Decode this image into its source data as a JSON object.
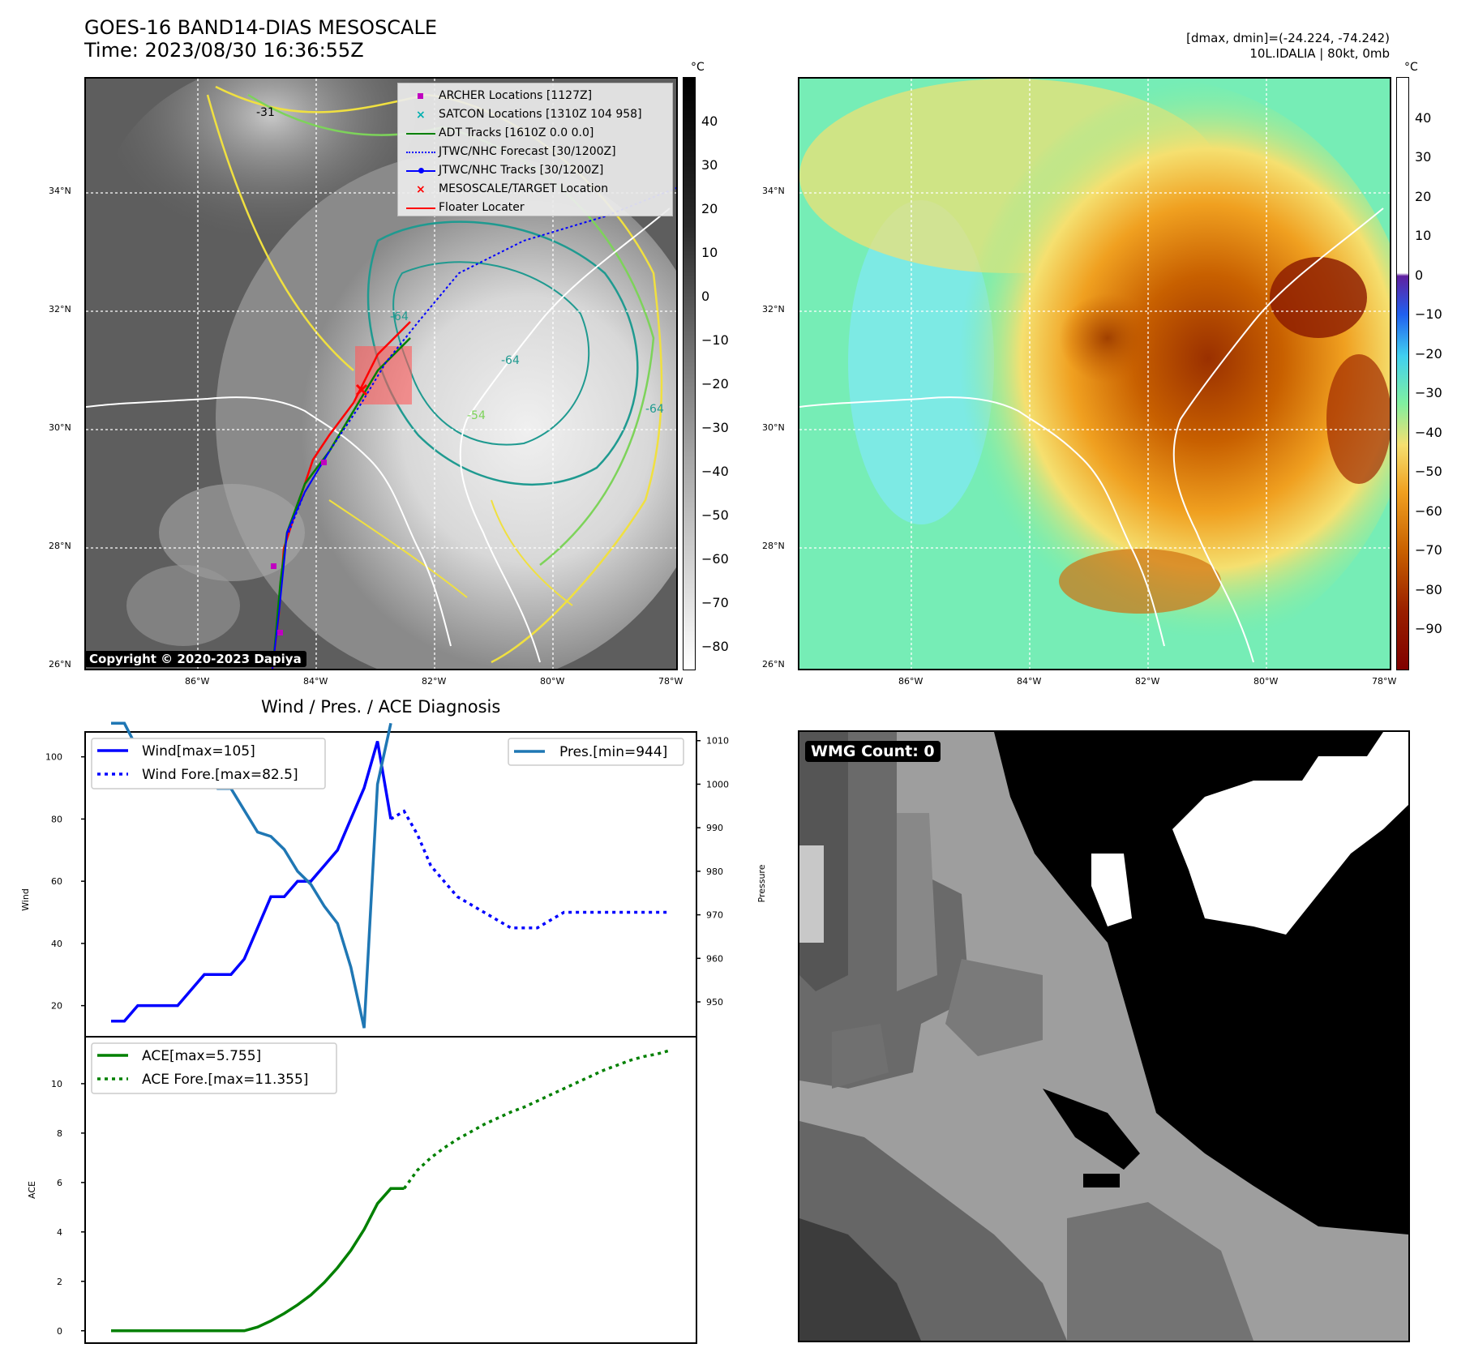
{
  "header": {
    "title": "GOES-16 BAND14-DIAS MESOSCALE",
    "time": "Time: 2023/08/30 16:36:55Z",
    "dmax_dmin": "[dmax, dmin]=(-24.224, -74.242)",
    "storm_info": "10L.IDALIA | 80kt, 0mb",
    "copyright": "Copyright © 2020-2023 Dapiya",
    "wmg_count": "WMG Count: 0",
    "diagnosis_title": "Wind / Pres. / ACE Diagnosis"
  },
  "map": {
    "lat_labels": [
      "34°N",
      "32°N",
      "30°N",
      "28°N",
      "26°N"
    ],
    "lon_labels": [
      "86°W",
      "84°W",
      "82°W",
      "80°W",
      "78°W"
    ],
    "contour_labels": [
      "-31",
      "-64",
      "-64",
      "-54",
      "-64"
    ],
    "legend": [
      {
        "label": "ARCHER Locations [1127Z]",
        "color": "#c000c0",
        "symbol": "square"
      },
      {
        "label": "SATCON Locations [1310Z 104 958]",
        "color": "#00b0b0",
        "symbol": "x"
      },
      {
        "label": "ADT Tracks [1610Z 0.0 0.0]",
        "color": "#008000",
        "symbol": "line"
      },
      {
        "label": "JTWC/NHC Forecast [30/1200Z]",
        "color": "#0000ff",
        "symbol": "dotted"
      },
      {
        "label": "JTWC/NHC Tracks [30/1200Z]",
        "color": "#0000ff",
        "symbol": "line-dot"
      },
      {
        "label": "MESOSCALE/TARGET Location",
        "color": "#ff0000",
        "symbol": "x"
      },
      {
        "label": "Floater Locater",
        "color": "#ff0000",
        "symbol": "line"
      }
    ],
    "colorbar_unit": "°C",
    "gray_colorbar_ticks": [
      "40",
      "30",
      "20",
      "10",
      "0",
      "−10",
      "−20",
      "−30",
      "−40",
      "−50",
      "−60",
      "−70",
      "−80"
    ],
    "color_colorbar_ticks": [
      "40",
      "30",
      "20",
      "10",
      "0",
      "−10",
      "−20",
      "−30",
      "−40",
      "−50",
      "−60",
      "−70",
      "−80",
      "−90"
    ]
  },
  "chart_data": [
    {
      "type": "line",
      "title": "Wind / Pres. / ACE Diagnosis",
      "ylabel": "Wind",
      "y2label": "Pressure",
      "ylim": [
        10,
        108
      ],
      "y2lim": [
        942,
        1012
      ],
      "yticks": [
        "100",
        "80",
        "60",
        "40",
        "20"
      ],
      "y2ticks": [
        "1010",
        "1000",
        "990",
        "980",
        "970",
        "960",
        "950"
      ],
      "series": [
        {
          "name": "Wind[max=105]",
          "color": "#0000ff",
          "style": "solid",
          "x": [
            0,
            1,
            2,
            3,
            4,
            5,
            6,
            7,
            8,
            9,
            10,
            11,
            12,
            13,
            14,
            15,
            16,
            17,
            18,
            19,
            20,
            21
          ],
          "values": [
            15,
            15,
            20,
            20,
            20,
            20,
            25,
            30,
            30,
            30,
            35,
            45,
            55,
            55,
            60,
            60,
            65,
            70,
            80,
            90,
            105,
            80
          ]
        },
        {
          "name": "Wind Fore.[max=82.5]",
          "color": "#0000ff",
          "style": "dotted",
          "x": [
            21,
            22,
            23,
            24,
            25,
            26,
            27,
            28,
            29,
            30,
            31,
            32,
            33,
            34,
            35,
            36,
            37,
            38,
            39,
            40,
            41,
            42
          ],
          "values": [
            80,
            82.5,
            75,
            65,
            60,
            55,
            52.5,
            50,
            47.5,
            45,
            45,
            45,
            47.5,
            50,
            50,
            50,
            50,
            50,
            50,
            50,
            50,
            50
          ]
        },
        {
          "name": "Pres.[min=944]",
          "color": "#1f77b4",
          "style": "solid",
          "axis": "right",
          "x": [
            0,
            1,
            2,
            3,
            4,
            5,
            6,
            7,
            8,
            9,
            10,
            11,
            12,
            13,
            14,
            15,
            16,
            17,
            18,
            19,
            20,
            21
          ],
          "values": [
            1014,
            1014,
            1008,
            1006,
            1005,
            1004,
            1004,
            1003,
            999,
            999,
            994,
            989,
            988,
            985,
            980,
            977,
            972,
            968,
            958,
            944,
            1000,
            1014
          ]
        }
      ]
    },
    {
      "type": "line",
      "ylabel": "ACE",
      "ylim": [
        -0.5,
        11.9
      ],
      "yticks": [
        "10",
        "8",
        "6",
        "4",
        "2",
        "0"
      ],
      "series": [
        {
          "name": "ACE[max=5.755]",
          "color": "#008000",
          "style": "solid",
          "x": [
            0,
            1,
            2,
            3,
            4,
            5,
            6,
            7,
            8,
            9,
            10,
            11,
            12,
            13,
            14,
            15,
            16,
            17,
            18,
            19,
            20,
            21,
            22
          ],
          "values": [
            0,
            0,
            0,
            0,
            0,
            0,
            0,
            0,
            0,
            0,
            0,
            0.15,
            0.4,
            0.7,
            1.05,
            1.45,
            1.95,
            2.55,
            3.25,
            4.1,
            5.15,
            5.755,
            5.755
          ]
        },
        {
          "name": "ACE Fore.[max=11.355]",
          "color": "#008000",
          "style": "dotted",
          "x": [
            22,
            23,
            24,
            25,
            26,
            27,
            28,
            29,
            30,
            31,
            32,
            33,
            34,
            35,
            36,
            37,
            38,
            39,
            40,
            41,
            42
          ],
          "values": [
            5.755,
            6.5,
            7.0,
            7.4,
            7.75,
            8.05,
            8.35,
            8.6,
            8.85,
            9.05,
            9.3,
            9.55,
            9.8,
            10.05,
            10.3,
            10.55,
            10.75,
            10.95,
            11.1,
            11.2,
            11.355
          ]
        }
      ]
    }
  ]
}
